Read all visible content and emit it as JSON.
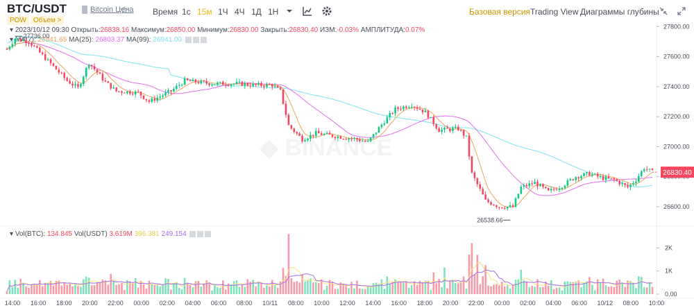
{
  "header": {
    "pair": "BTC/USDT",
    "pair_link": "Bitcoin Цена",
    "tags": [
      "POW",
      "Объем >"
    ],
    "time_label": "Время",
    "intervals": [
      "1с",
      "15м",
      "1Ч",
      "4Ч",
      "1Д",
      "1Н"
    ],
    "active_interval": "15м",
    "views": [
      "Базовая версия",
      "Trading View",
      "Диаграммы глубины"
    ],
    "active_view": "Базовая версия"
  },
  "ohlc": {
    "date": "2023/10/12 09:30",
    "open_label": "Открыть:",
    "open": "26838.16",
    "high_label": "Максимум:",
    "high": "26850.00",
    "low_label": "Минимум:",
    "low": "26830.00",
    "close_label": "Закрыть:",
    "close": "26830.40",
    "change_label": "ИЗМ:",
    "change": "-0.03%",
    "amp_label": "АМПЛИТУДА:",
    "amp": "0.07%"
  },
  "ma_legend": {
    "ma7_label": "MA(7):",
    "ma7": "26841.65",
    "ma25_label": "MA(25):",
    "ma25": "26803.37",
    "ma99_label": "MA(99):",
    "ma99": "26941.00"
  },
  "vol_legend": {
    "btc_label": "Vol(BTC):",
    "btc": "134.845",
    "usdt_label": "Vol(USDT)",
    "usdt": "3.619M",
    "ma5": "396.381",
    "ma10": "249.154"
  },
  "colors": {
    "up": "#0ecb81",
    "down": "#f6465d",
    "ma7": "#f0a35b",
    "ma25": "#e26ff0",
    "ma99": "#7de3ef",
    "vol_ma5": "#f6e37a",
    "vol_ma10": "#a36bf0"
  },
  "chart_data": {
    "type": "candlestick",
    "price_axis": {
      "ticks": [
        "27800.00",
        "27600.00",
        "27400.00",
        "27200.00",
        "27000.00",
        "26800.00",
        "26600.00"
      ],
      "range": [
        26480,
        27820
      ]
    },
    "volume_axis": {
      "ticks": [
        "2K",
        "1K",
        "0.00"
      ],
      "range": [
        0,
        2700
      ]
    },
    "time_ticks": [
      "14:00",
      "16:00",
      "18:00",
      "20:00",
      "22:00",
      "00:00",
      "02:00",
      "04:00",
      "06:00",
      "08:00",
      "10/11",
      "08:00",
      "10:00",
      "12:00",
      "14:00",
      "16:00",
      "18:00",
      "20:00",
      "22:00",
      "00:00",
      "02:00",
      "04:00",
      "06:00",
      "10/12",
      "08:00",
      "10:00"
    ],
    "last_price": "26830.40",
    "max_label": "27736.00",
    "min_label": "26538.66",
    "waypoints": [
      [
        0,
        27650
      ],
      [
        3,
        27720
      ],
      [
        8,
        27700
      ],
      [
        14,
        27590
      ],
      [
        22,
        27440
      ],
      [
        26,
        27390
      ],
      [
        30,
        27560
      ],
      [
        36,
        27430
      ],
      [
        40,
        27370
      ],
      [
        48,
        27360
      ],
      [
        52,
        27300
      ],
      [
        60,
        27370
      ],
      [
        65,
        27440
      ],
      [
        75,
        27420
      ],
      [
        85,
        27420
      ],
      [
        90,
        27410
      ],
      [
        97,
        27410
      ],
      [
        100,
        27370
      ],
      [
        103,
        27140
      ],
      [
        108,
        27050
      ],
      [
        113,
        27090
      ],
      [
        120,
        27070
      ],
      [
        128,
        27050
      ],
      [
        132,
        27030
      ],
      [
        138,
        27170
      ],
      [
        142,
        27250
      ],
      [
        148,
        27280
      ],
      [
        153,
        27230
      ],
      [
        158,
        27110
      ],
      [
        165,
        27120
      ],
      [
        168,
        27060
      ],
      [
        170,
        26820
      ],
      [
        175,
        26640
      ],
      [
        180,
        26600
      ],
      [
        185,
        26600
      ],
      [
        188,
        26730
      ],
      [
        193,
        26760
      ],
      [
        198,
        26700
      ],
      [
        203,
        26740
      ],
      [
        208,
        26800
      ],
      [
        213,
        26820
      ],
      [
        218,
        26790
      ],
      [
        222,
        26780
      ],
      [
        227,
        26730
      ],
      [
        230,
        26780
      ],
      [
        233,
        26860
      ],
      [
        236,
        26830
      ]
    ]
  }
}
